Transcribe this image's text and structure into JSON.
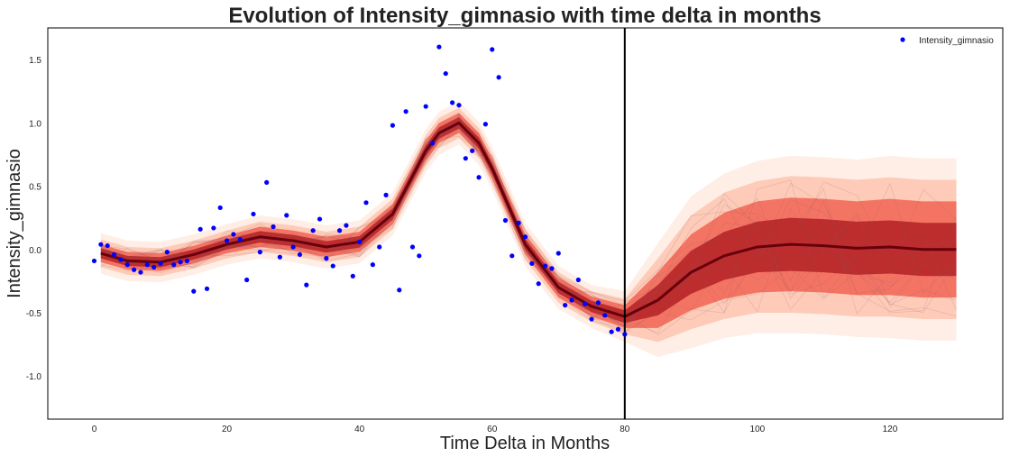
{
  "chart_data": {
    "type": "scatter",
    "title": "Evolution of Intensity_gimnasio with time delta in months",
    "xlabel": "Time Delta in Months",
    "ylabel": "Intensity_gimnasio",
    "xlim": [
      -7,
      137
    ],
    "ylim": [
      -1.34,
      1.75
    ],
    "x_ticks": [
      0,
      20,
      40,
      60,
      80,
      100,
      120
    ],
    "y_ticks": [
      -1.0,
      -0.5,
      0.0,
      0.5,
      1.0,
      1.5
    ],
    "grid": false,
    "legend_position": "top-right",
    "vertical_line_x": 80,
    "colors": {
      "observed": "#0000ff",
      "fan_dark": "#67000d",
      "fan_light": "#fee0d2",
      "axis": "#000000"
    },
    "series": [
      {
        "name": "Intensity_gimnasio",
        "kind": "observed-points",
        "x": [
          0,
          1,
          2,
          3,
          4,
          5,
          6,
          7,
          8,
          9,
          10,
          11,
          12,
          13,
          14,
          15,
          16,
          17,
          18,
          19,
          20,
          21,
          22,
          23,
          24,
          25,
          26,
          27,
          28,
          29,
          30,
          31,
          32,
          33,
          34,
          35,
          36,
          37,
          38,
          39,
          40,
          41,
          42,
          43,
          44,
          45,
          46,
          47,
          48,
          49,
          50,
          51,
          52,
          53,
          54,
          55,
          56,
          57,
          58,
          59,
          60,
          61,
          62,
          63,
          64,
          65,
          66,
          67,
          68,
          69,
          70,
          71,
          72,
          73,
          74,
          75,
          76,
          77,
          78,
          79,
          80
        ],
        "y": [
          -0.09,
          0.04,
          0.03,
          -0.04,
          -0.08,
          -0.12,
          -0.16,
          -0.18,
          -0.12,
          -0.14,
          -0.11,
          -0.02,
          -0.12,
          -0.1,
          -0.09,
          -0.33,
          0.16,
          -0.31,
          0.17,
          0.33,
          0.07,
          0.12,
          0.08,
          -0.24,
          0.28,
          -0.02,
          0.53,
          0.18,
          -0.06,
          0.27,
          0.02,
          -0.04,
          -0.28,
          0.15,
          0.24,
          -0.07,
          -0.13,
          0.15,
          0.19,
          -0.21,
          0.06,
          0.37,
          -0.12,
          0.02,
          0.43,
          0.98,
          -0.32,
          1.09,
          0.02,
          -0.05,
          1.13,
          0.84,
          1.6,
          1.39,
          1.16,
          1.14,
          0.72,
          0.78,
          0.57,
          0.99,
          1.58,
          1.36,
          0.23,
          -0.05,
          0.21,
          0.1,
          -0.11,
          -0.27,
          -0.13,
          -0.15,
          -0.03,
          -0.44,
          -0.4,
          -0.24,
          -0.43,
          -0.55,
          -0.42,
          -0.52,
          -0.65,
          -0.63,
          -0.67
        ]
      },
      {
        "kind": "posterior-median",
        "x": [
          1,
          5,
          10,
          15,
          20,
          25,
          30,
          35,
          40,
          45,
          50,
          52,
          55,
          58,
          60,
          65,
          70,
          75,
          80,
          85,
          90,
          95,
          100,
          105,
          110,
          115,
          120,
          125,
          130
        ],
        "y": [
          -0.03,
          -0.09,
          -0.1,
          -0.04,
          0.04,
          0.1,
          0.07,
          0.02,
          0.06,
          0.28,
          0.78,
          0.92,
          1.0,
          0.84,
          0.64,
          0.04,
          -0.3,
          -0.45,
          -0.53,
          -0.4,
          -0.18,
          -0.05,
          0.02,
          0.04,
          0.03,
          0.01,
          0.02,
          0.0,
          0.0
        ]
      }
    ],
    "fan_band_halfwidths": [
      [
        0.16,
        0.16,
        0.16,
        0.16,
        0.16,
        0.17,
        0.17,
        0.17,
        0.17,
        0.17,
        0.17,
        0.17,
        0.17,
        0.17,
        0.17,
        0.17,
        0.17,
        0.17,
        0.2,
        0.45,
        0.6,
        0.65,
        0.68,
        0.7,
        0.7,
        0.7,
        0.72,
        0.72,
        0.72
      ],
      [
        0.11,
        0.11,
        0.11,
        0.11,
        0.11,
        0.12,
        0.12,
        0.12,
        0.12,
        0.12,
        0.12,
        0.12,
        0.12,
        0.12,
        0.12,
        0.12,
        0.12,
        0.12,
        0.14,
        0.33,
        0.45,
        0.5,
        0.52,
        0.54,
        0.54,
        0.54,
        0.55,
        0.55,
        0.55
      ],
      [
        0.07,
        0.07,
        0.07,
        0.07,
        0.07,
        0.08,
        0.08,
        0.08,
        0.08,
        0.08,
        0.08,
        0.08,
        0.08,
        0.08,
        0.08,
        0.08,
        0.08,
        0.08,
        0.09,
        0.22,
        0.3,
        0.34,
        0.36,
        0.37,
        0.37,
        0.37,
        0.38,
        0.38,
        0.38
      ],
      [
        0.04,
        0.04,
        0.04,
        0.04,
        0.04,
        0.045,
        0.045,
        0.045,
        0.045,
        0.045,
        0.045,
        0.045,
        0.045,
        0.045,
        0.045,
        0.045,
        0.045,
        0.045,
        0.05,
        0.12,
        0.17,
        0.19,
        0.2,
        0.21,
        0.21,
        0.21,
        0.21,
        0.21,
        0.21
      ]
    ]
  }
}
